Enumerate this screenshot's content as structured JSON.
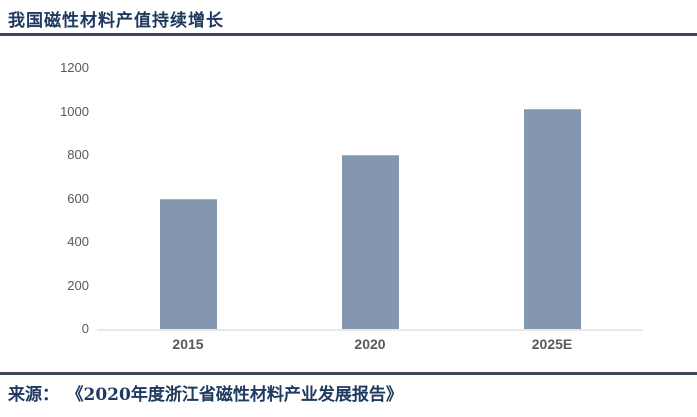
{
  "header": {
    "title": "我国磁性材料产值持续增长"
  },
  "footer": {
    "source_label": "来源：",
    "source_text": "《2020年度浙江省磁性材料产业发展报告》"
  },
  "colors": {
    "bar": "#8397AF",
    "rule": "#3D4A5C",
    "title_text": "#1F3A60",
    "axis_text": "#595959",
    "baseline": "#E8E8E8"
  },
  "chart_data": {
    "type": "bar",
    "title": "我国磁性材料产值持续增长",
    "categories": [
      "2015",
      "2020",
      "2025E"
    ],
    "values": [
      600,
      800,
      1010
    ],
    "xlabel": "",
    "ylabel": "",
    "ylim": [
      0,
      1200
    ],
    "yticks": [
      0,
      200,
      400,
      600,
      800,
      1000,
      1200
    ],
    "grid": false,
    "legend": false,
    "bar_color": "#8397AF"
  }
}
